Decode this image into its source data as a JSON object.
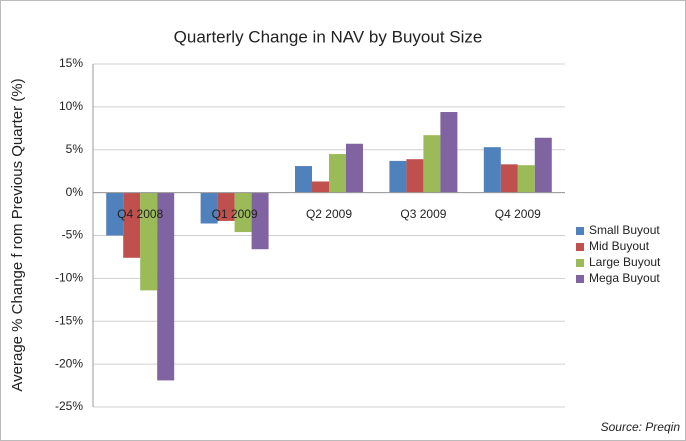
{
  "chart_data": {
    "type": "bar",
    "title": "Quarterly Change in NAV by Buyout Size",
    "y_label": "Average % Change f rom Previous Quarter (%)",
    "source": "Source: Preqin",
    "categories": [
      "Q4 2008",
      "Q1 2009",
      "Q2 2009",
      "Q3 2009",
      "Q4 2009"
    ],
    "series": [
      {
        "name": "Small Buyout",
        "color": "#4f81bd",
        "values": [
          -5.0,
          -3.6,
          3.1,
          3.7,
          5.3
        ]
      },
      {
        "name": "Mid Buyout",
        "color": "#c0504d",
        "values": [
          -7.6,
          -3.3,
          1.3,
          3.9,
          3.3
        ]
      },
      {
        "name": "Large Buyout",
        "color": "#9bbb59",
        "values": [
          -11.4,
          -4.6,
          4.5,
          6.7,
          3.2
        ]
      },
      {
        "name": "Mega Buyout",
        "color": "#8064a2",
        "values": [
          -21.9,
          -6.6,
          5.7,
          9.4,
          6.4
        ]
      }
    ],
    "ylim": [
      -25,
      15
    ],
    "yticks": [
      {
        "value": -25,
        "label": "-25%"
      },
      {
        "value": -20,
        "label": "-20%"
      },
      {
        "value": -15,
        "label": "-15%"
      },
      {
        "value": -10,
        "label": "-10%"
      },
      {
        "value": -5,
        "label": "-5%"
      },
      {
        "value": 0,
        "label": "0%"
      },
      {
        "value": 5,
        "label": "5%"
      },
      {
        "value": 10,
        "label": "10%"
      },
      {
        "value": 15,
        "label": "15%"
      }
    ],
    "grid": true,
    "legend": "right"
  }
}
